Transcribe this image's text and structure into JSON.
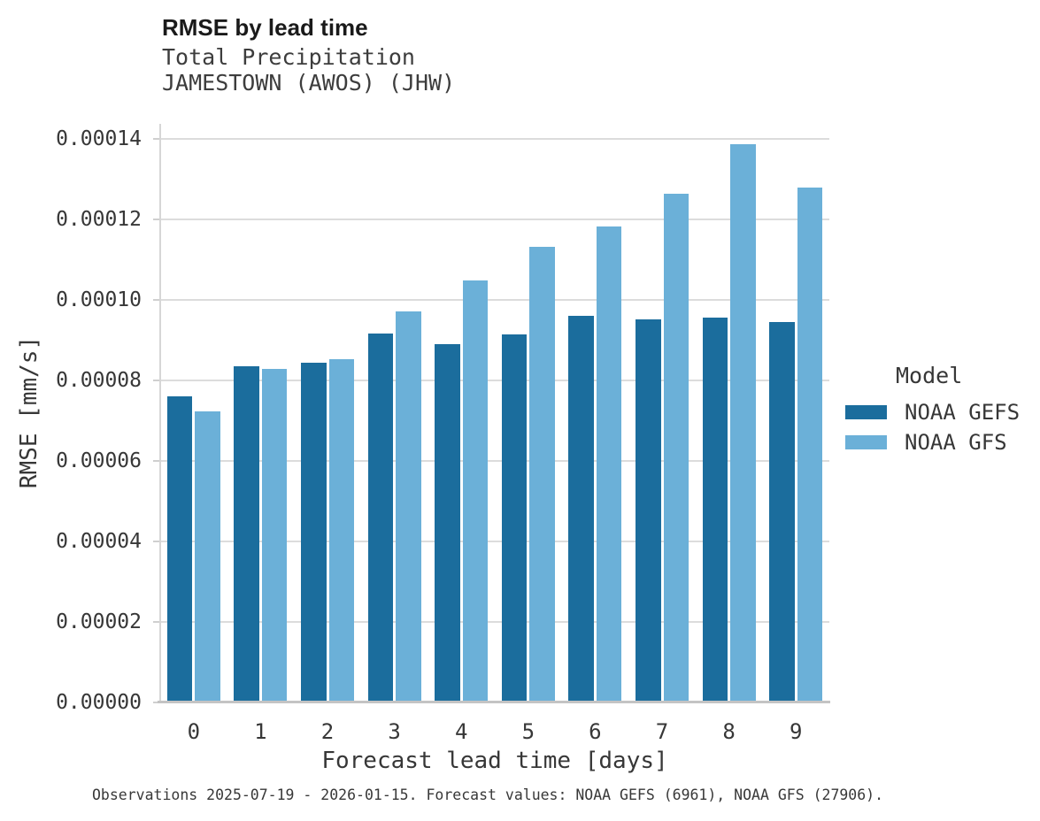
{
  "header": {
    "title": "RMSE by lead time",
    "subtitle1": "Total Precipitation",
    "subtitle2": "JAMESTOWN (AWOS) (JHW)"
  },
  "chart_data": {
    "type": "bar",
    "title": "RMSE by lead time",
    "subtitle": [
      "Total Precipitation",
      "JAMESTOWN (AWOS) (JHW)"
    ],
    "xlabel": "Forecast lead time [days]",
    "ylabel": "RMSE [mm/s]",
    "categories": [
      "0",
      "1",
      "2",
      "3",
      "4",
      "5",
      "6",
      "7",
      "8",
      "9"
    ],
    "series": [
      {
        "name": "NOAA GEFS",
        "color": "#1b6d9d",
        "values": [
          7.61e-05,
          8.36e-05,
          8.45e-05,
          9.17e-05,
          8.9e-05,
          9.14e-05,
          9.61e-05,
          9.52e-05,
          9.56e-05,
          9.44e-05
        ]
      },
      {
        "name": "NOAA GFS",
        "color": "#6bb0d8",
        "values": [
          7.24e-05,
          8.28e-05,
          8.53e-05,
          9.71e-05,
          0.0001048,
          0.0001132,
          0.0001183,
          0.0001263,
          0.0001387,
          0.000128
        ]
      }
    ],
    "ylim": [
      0,
      0.00014
    ],
    "yticks": [
      0.0,
      2e-05,
      4e-05,
      6e-05,
      8e-05,
      0.0001,
      0.00012,
      0.00014
    ],
    "ytick_labels": [
      "0.00000",
      "0.00002",
      "0.00004",
      "0.00006",
      "0.00008",
      "0.00010",
      "0.00012",
      "0.00014"
    ],
    "grid": true,
    "legend_position": "right"
  },
  "legend": {
    "title": "Model",
    "items": [
      {
        "label": "NOAA GEFS",
        "color": "#1b6d9d"
      },
      {
        "label": "NOAA GFS",
        "color": "#6bb0d8"
      }
    ]
  },
  "caption": "Observations 2025-07-19 - 2026-01-15. Forecast values: NOAA GEFS (6961), NOAA GFS (27906)."
}
